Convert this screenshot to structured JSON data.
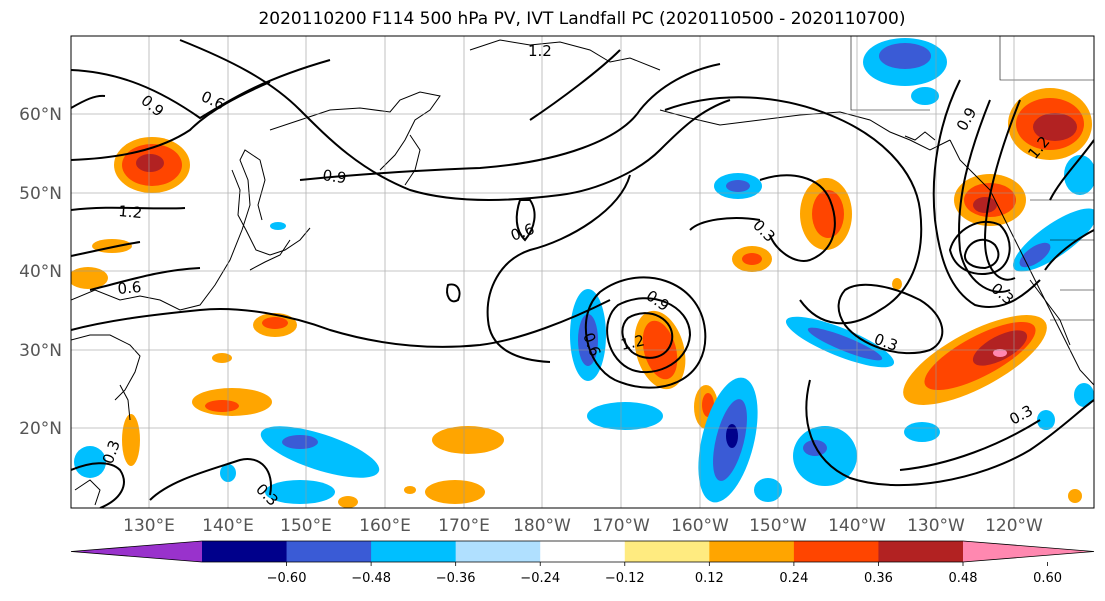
{
  "title": "2020110200 F114 500 hPa PV, IVT Landfall PC (2020110500 - 2020110700)",
  "lat_labels": [
    "60°N",
    "50°N",
    "40°N",
    "30°N",
    "20°N"
  ],
  "lon_labels": [
    "130°E",
    "140°E",
    "150°E",
    "160°E",
    "170°E",
    "180°W",
    "170°W",
    "160°W",
    "150°W",
    "140°W",
    "130°W",
    "120°W"
  ],
  "colorbar": {
    "tick_labels": [
      "−0.60",
      "−0.48",
      "−0.36",
      "−0.24",
      "−0.12",
      "0.12",
      "0.24",
      "0.36",
      "0.48",
      "0.60"
    ],
    "colors": [
      "#9932cc",
      "#00008b",
      "#3a5bd6",
      "#00bfff",
      "#b0e0ff",
      "#ffffff",
      "#ffeb80",
      "#ffa500",
      "#ff4500",
      "#b22222",
      "#ff88b0"
    ]
  },
  "contour_labels": [
    "0.9",
    "0.6",
    "1.2",
    "0.9",
    "1.2",
    "0.6",
    "0.6",
    "0.3",
    "0.9",
    "0.6",
    "1.2",
    "0.3",
    "0.9",
    "1.2",
    "0.3",
    "0.3",
    "0.3",
    "0.3"
  ]
}
